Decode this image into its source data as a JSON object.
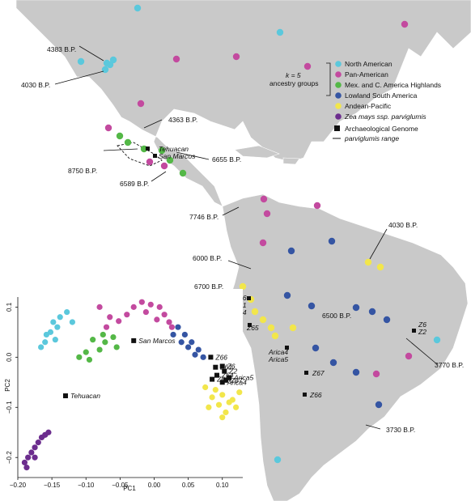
{
  "legend": {
    "group_title_line1": "k = 5",
    "group_title_line2": "ancestry groups",
    "items": [
      {
        "label": "North American",
        "color": "#5bc8dc"
      },
      {
        "label": "Pan-American",
        "color": "#c34a9f"
      },
      {
        "label": "Mex. and C. America Highlands",
        "color": "#54b847"
      },
      {
        "label": "Lowland South America",
        "color": "#3555a3"
      },
      {
        "label": "Andean-Pacific",
        "color": "#f2e64b"
      },
      {
        "label": "Zea mays ssp. parviglumis",
        "color": "#6c2d8e"
      }
    ],
    "archaeo_label": "Archaeological Genome",
    "range_label": "parviglumis range"
  },
  "map_labels": {
    "bp4383": "4383 B.P.",
    "bp4030n": "4030 B.P.",
    "bp4363": "4363 B.P.",
    "tehuacan": "Tehuacan",
    "sanmarcos": "San Marcos",
    "bp6655": "6655 B.P.",
    "bp8750": "8750 B.P.",
    "bp6589": "6589 B.P.",
    "bp7746": "7746 B.P.",
    "bp4030s": "4030 B.P.",
    "bp6000": "6000 B.P.",
    "bp6700": "6700 B.P.",
    "z66a": "Z66",
    "z61a": "Z61",
    "z64a": "Z64",
    "z65a": "Z65",
    "bp6500": "6500 B.P.",
    "z6a": "Z6",
    "z2a": "Z2",
    "arica4a": "Arica4",
    "arica5a": "Arica5",
    "z67a": "Z67",
    "bp3770": "3770 B.P.",
    "z66b": "Z66",
    "bp3730": "3730 B.P."
  },
  "chart_data": {
    "type": "scatter",
    "xlabel": "PC1",
    "ylabel": "PC2",
    "xlim": [
      -0.2,
      0.13
    ],
    "ylim": [
      -0.24,
      0.12
    ],
    "xticks": [
      "−0.20",
      "−0.15",
      "−0.10",
      "−0.05",
      "0.00",
      "0.05",
      "0.10"
    ],
    "yticks": [
      "0.1",
      "0.0",
      "−0.1",
      "−0.2"
    ],
    "archaeological": [
      {
        "label": "Tehuacan",
        "x": -0.13,
        "y": -0.077
      },
      {
        "label": "San Marcos",
        "x": -0.03,
        "y": 0.033
      },
      {
        "label": "Z66",
        "x": 0.083,
        "y": 0.0
      },
      {
        "label": "Z61",
        "x": 0.09,
        "y": -0.02
      },
      {
        "label": "Z6",
        "x": 0.1,
        "y": -0.018
      },
      {
        "label": "Z2",
        "x": 0.103,
        "y": -0.028
      },
      {
        "label": "Z64",
        "x": 0.092,
        "y": -0.036
      },
      {
        "label": "Arica5",
        "x": 0.11,
        "y": -0.041
      },
      {
        "label": "Z65",
        "x": 0.085,
        "y": -0.044
      },
      {
        "label": "Arica4",
        "x": 0.1,
        "y": -0.05
      },
      {
        "label": "Z67",
        "x": 0.105,
        "y": -0.046
      }
    ],
    "series": [
      {
        "name": "North American",
        "points": [
          [
            -0.166,
            0.02
          ],
          [
            -0.16,
            0.03
          ],
          [
            -0.152,
            0.05
          ],
          [
            -0.148,
            0.07
          ],
          [
            -0.142,
            0.06
          ],
          [
            -0.138,
            0.08
          ],
          [
            -0.158,
            0.045
          ],
          [
            -0.128,
            0.09
          ],
          [
            -0.12,
            0.07
          ],
          [
            -0.145,
            0.035
          ]
        ]
      },
      {
        "name": "Pan-American",
        "points": [
          [
            -0.03,
            0.1
          ],
          [
            -0.018,
            0.11
          ],
          [
            -0.005,
            0.105
          ],
          [
            0.008,
            0.1
          ],
          [
            0.015,
            0.085
          ],
          [
            0.022,
            0.07
          ],
          [
            -0.04,
            0.085
          ],
          [
            -0.012,
            0.09
          ],
          [
            0.004,
            0.075
          ],
          [
            0.026,
            0.06
          ],
          [
            -0.065,
            0.08
          ],
          [
            -0.052,
            0.072
          ],
          [
            -0.07,
            0.06
          ],
          [
            -0.08,
            0.1
          ]
        ]
      },
      {
        "name": "Mex. and C. America Highlands",
        "points": [
          [
            -0.1,
            0.01
          ],
          [
            -0.11,
            0.0
          ],
          [
            -0.095,
            -0.005
          ],
          [
            -0.08,
            0.015
          ],
          [
            -0.072,
            0.03
          ],
          [
            -0.06,
            0.04
          ],
          [
            -0.09,
            0.035
          ],
          [
            -0.075,
            0.045
          ],
          [
            -0.055,
            0.02
          ]
        ]
      },
      {
        "name": "Lowland South America",
        "points": [
          [
            0.035,
            0.06
          ],
          [
            0.045,
            0.045
          ],
          [
            0.055,
            0.03
          ],
          [
            0.065,
            0.015
          ],
          [
            0.072,
            0.0
          ],
          [
            0.05,
            0.02
          ],
          [
            0.04,
            0.03
          ],
          [
            0.028,
            0.045
          ],
          [
            0.06,
            0.005
          ]
        ]
      },
      {
        "name": "Andean-Pacific",
        "points": [
          [
            0.09,
            -0.065
          ],
          [
            0.1,
            -0.075
          ],
          [
            0.11,
            -0.09
          ],
          [
            0.12,
            -0.1
          ],
          [
            0.105,
            -0.11
          ],
          [
            0.115,
            -0.085
          ],
          [
            0.095,
            -0.095
          ],
          [
            0.085,
            -0.08
          ],
          [
            0.125,
            -0.07
          ],
          [
            0.075,
            -0.06
          ],
          [
            0.08,
            -0.1
          ],
          [
            0.1,
            -0.12
          ]
        ]
      },
      {
        "name": "Zea mays ssp. parviglumis",
        "points": [
          [
            -0.19,
            -0.21
          ],
          [
            -0.185,
            -0.2
          ],
          [
            -0.18,
            -0.19
          ],
          [
            -0.175,
            -0.18
          ],
          [
            -0.17,
            -0.17
          ],
          [
            -0.165,
            -0.16
          ],
          [
            -0.16,
            -0.155
          ],
          [
            -0.155,
            -0.15
          ],
          [
            -0.187,
            -0.22
          ],
          [
            -0.175,
            -0.2
          ]
        ]
      }
    ]
  }
}
